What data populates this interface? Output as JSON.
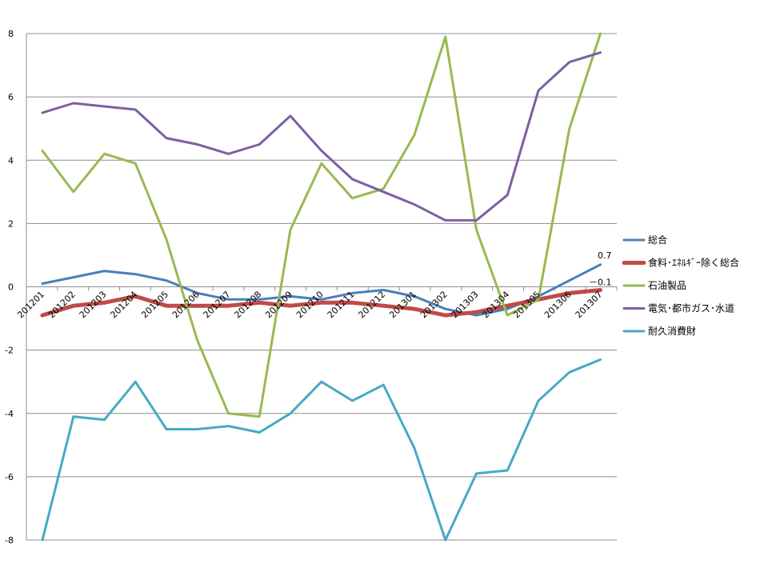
{
  "chart_data": {
    "type": "line",
    "title": "",
    "xlabel": "",
    "ylabel": "",
    "ylim": [
      -8,
      8
    ],
    "yticks": [
      8,
      6,
      4,
      2,
      0,
      -2,
      -4,
      -6,
      -8
    ],
    "grid": "horizontal",
    "legend_position": "right",
    "categories": [
      "201201",
      "201202",
      "201203",
      "201204",
      "201205",
      "201206",
      "201207",
      "201208",
      "201209",
      "201210",
      "201211",
      "201212",
      "201301",
      "201302",
      "201303",
      "201304",
      "201305",
      "201306",
      "201307"
    ],
    "series": [
      {
        "name": "総合",
        "color": "#4A7EBB",
        "width": 3,
        "values": [
          0.1,
          0.3,
          0.5,
          0.4,
          0.2,
          -0.2,
          -0.4,
          -0.4,
          -0.3,
          -0.4,
          -0.2,
          -0.1,
          -0.3,
          -0.7,
          -0.9,
          -0.7,
          -0.3,
          0.2,
          0.7
        ]
      },
      {
        "name": "食料･ｴﾈﾙｷﾞｰ除く総合",
        "color": "#BE4B48",
        "width": 5,
        "values": [
          -0.9,
          -0.6,
          -0.5,
          -0.3,
          -0.6,
          -0.6,
          -0.6,
          -0.5,
          -0.6,
          -0.5,
          -0.5,
          -0.6,
          -0.7,
          -0.9,
          -0.8,
          -0.6,
          -0.4,
          -0.2,
          -0.1
        ]
      },
      {
        "name": "石油製品",
        "color": "#98B954",
        "width": 3,
        "values": [
          4.3,
          3.0,
          4.2,
          3.9,
          1.5,
          -1.7,
          -4.0,
          -4.1,
          1.8,
          3.9,
          2.8,
          3.1,
          4.8,
          7.9,
          1.8,
          -0.9,
          -0.4,
          5.0,
          8.0
        ]
      },
      {
        "name": "電気･都市ガス･水道",
        "color": "#7D60A0",
        "width": 3,
        "values": [
          5.5,
          5.8,
          5.7,
          5.6,
          4.7,
          4.5,
          4.2,
          4.5,
          5.4,
          4.3,
          3.4,
          3.0,
          2.6,
          2.1,
          2.1,
          2.9,
          6.2,
          7.1,
          7.4
        ]
      },
      {
        "name": "耐久消費財",
        "color": "#46AAC5",
        "width": 3,
        "values": [
          -8.0,
          -4.1,
          -4.2,
          -3.0,
          -4.5,
          -4.5,
          -4.4,
          -4.6,
          -4.0,
          -3.0,
          -3.6,
          -3.1,
          -5.1,
          -8.0,
          -5.9,
          -5.8,
          -3.6,
          -2.7,
          -2.3
        ]
      }
    ],
    "annotations": [
      {
        "text": "0.7",
        "series": 0,
        "index": 18
      },
      {
        "text": "－0.1",
        "series": 1,
        "index": 18
      }
    ]
  }
}
